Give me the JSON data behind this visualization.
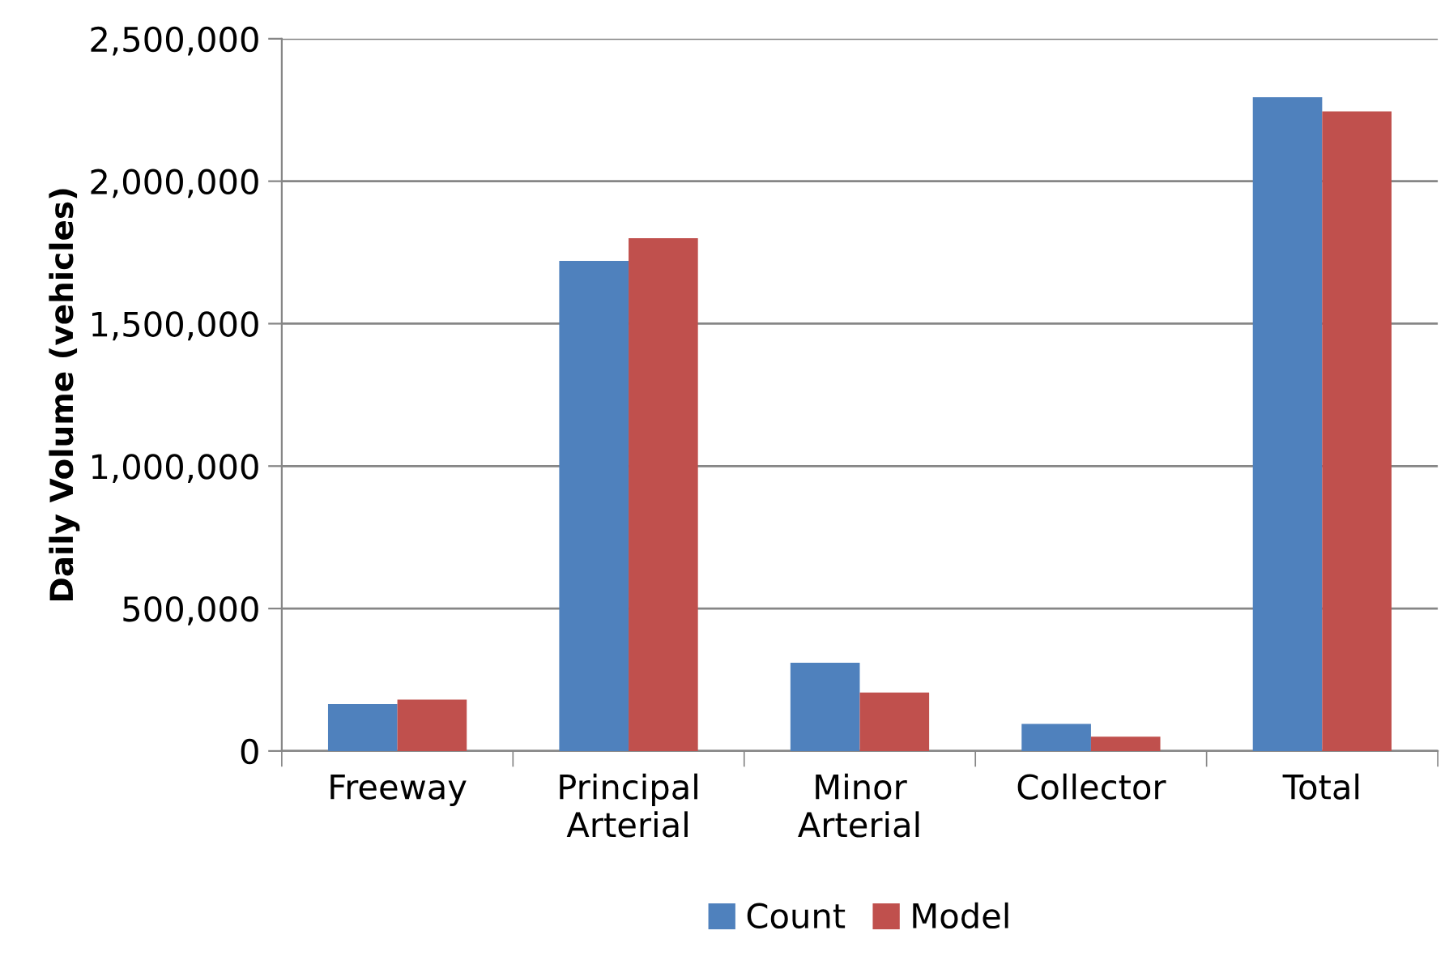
{
  "chart_data": {
    "type": "bar",
    "ylabel": "Daily Volume (vehicles)",
    "categories": [
      "Freeway",
      "Principal\nArterial",
      "Minor\nArterial",
      "Collector",
      "Total"
    ],
    "series": [
      {
        "name": "Count",
        "color": "#4f81bd",
        "values": [
          165000,
          1720000,
          310000,
          95000,
          2295000
        ]
      },
      {
        "name": "Model",
        "color": "#c0504d",
        "values": [
          180000,
          1800000,
          205000,
          50000,
          2245000
        ]
      }
    ],
    "ylim": [
      0,
      2500000
    ],
    "yticks": [
      {
        "value": 0,
        "label": "0"
      },
      {
        "value": 500000,
        "label": "500,000"
      },
      {
        "value": 1000000,
        "label": "1,000,000"
      },
      {
        "value": 1500000,
        "label": "1,500,000"
      },
      {
        "value": 2000000,
        "label": "2,000,000"
      },
      {
        "value": 2500000,
        "label": "2,500,000"
      }
    ],
    "grid": "y",
    "legend": "bottom"
  }
}
